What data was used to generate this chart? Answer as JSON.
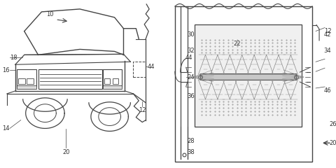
{
  "bg_color": "#ffffff",
  "line_color": "#444444",
  "gray_line": "#888888",
  "light_gray": "#bbbbbb",
  "fill_gray": "#e8e8e8",
  "label_color": "#333333",
  "fig_width": 4.8,
  "fig_height": 2.4,
  "dpi": 100
}
